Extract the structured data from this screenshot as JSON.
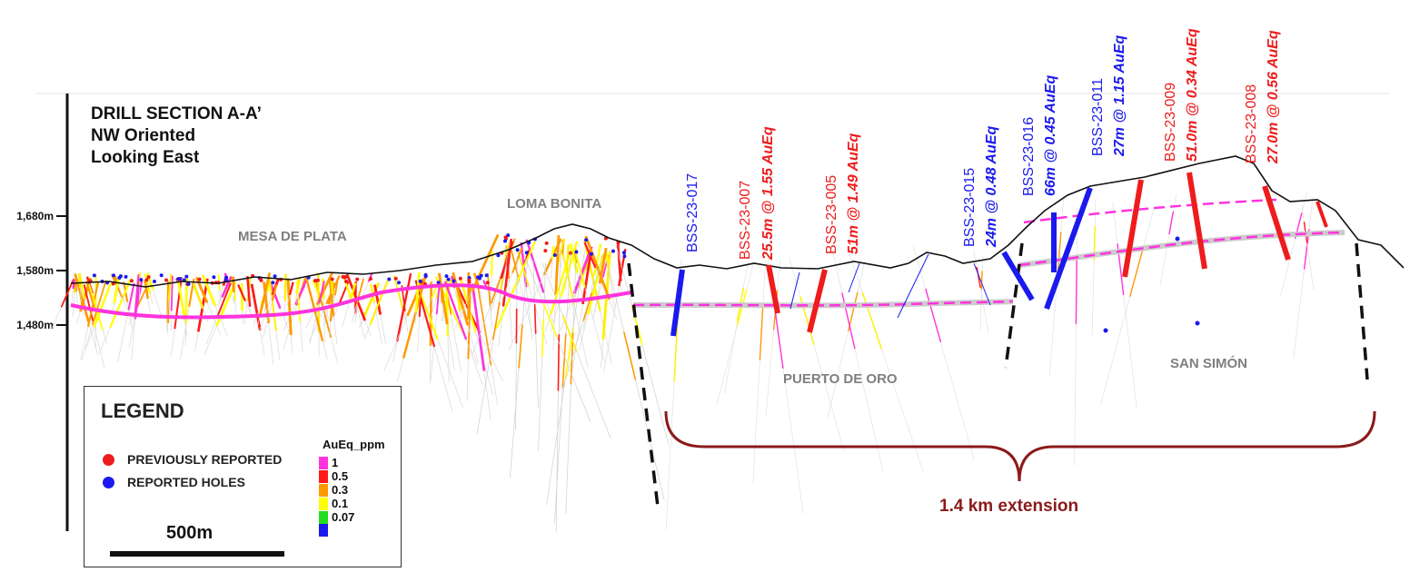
{
  "section_title": [
    "DRILL SECTION A-A’",
    "NW Oriented",
    "Looking East"
  ],
  "elevations": [
    {
      "label": "1,680m",
      "value": 1680
    },
    {
      "label": "1,580m",
      "value": 1580
    },
    {
      "label": "1,480m",
      "value": 1480
    }
  ],
  "areas": {
    "mesa_de_plata": "MESA DE PLATA",
    "loma_bonita": "LOMA BONITA",
    "puerto_de_oro": "PUERTO DE ORO",
    "san_simon": "SAN SIMÓN"
  },
  "holes": [
    {
      "id": "BSS-23-017",
      "result": "",
      "status": "reported",
      "color": "#1a1aee"
    },
    {
      "id": "BSS-23-007",
      "result": "25.5m @ 1.55 AuEq",
      "status": "previous",
      "color": "#ee1c1c"
    },
    {
      "id": "BSS-23-005",
      "result": "51m @ 1.49 AuEq",
      "status": "previous",
      "color": "#ee1c1c"
    },
    {
      "id": "BSS-23-015",
      "result": "24m @ 0.48 AuEq",
      "status": "reported",
      "color": "#1a1aee"
    },
    {
      "id": "BSS-23-016",
      "result": "66m @ 0.45 AuEq",
      "status": "reported",
      "color": "#1a1aee"
    },
    {
      "id": "BSS-23-011",
      "result": "27m @ 1.15 AuEq",
      "status": "reported",
      "color": "#1a1aee"
    },
    {
      "id": "BSS-23-009",
      "result": "51.0m @ 0.34 AuEq",
      "status": "previous",
      "color": "#ee1c1c"
    },
    {
      "id": "BSS-23-008",
      "result": "27.0m @ 0.56 AuEq",
      "status": "previous",
      "color": "#ee1c1c"
    }
  ],
  "extension_label": "1.4 km extension",
  "legend": {
    "title": "LEGEND",
    "previously_reported": "PREVIOUSLY REPORTED",
    "reported_holes": "REPORTED HOLES",
    "scale_label": "500m",
    "colorscale_title": "AuEq_ppm",
    "colorscale": [
      {
        "label": "1",
        "color": "#ff33dd"
      },
      {
        "label": "0.5",
        "color": "#ff1a1a"
      },
      {
        "label": "0.3",
        "color": "#ff9900"
      },
      {
        "label": "0.1",
        "color": "#ffff00"
      },
      {
        "label": "0.07",
        "color": "#22dd22"
      },
      {
        "label": "",
        "color": "#1a1aee"
      }
    ]
  },
  "colors": {
    "previous": "#ee1c1c",
    "reported": "#1a1aee",
    "topography": "#111111",
    "mineralized_zone": "#ff33dd",
    "extension_bracket": "#8b1a1a"
  }
}
